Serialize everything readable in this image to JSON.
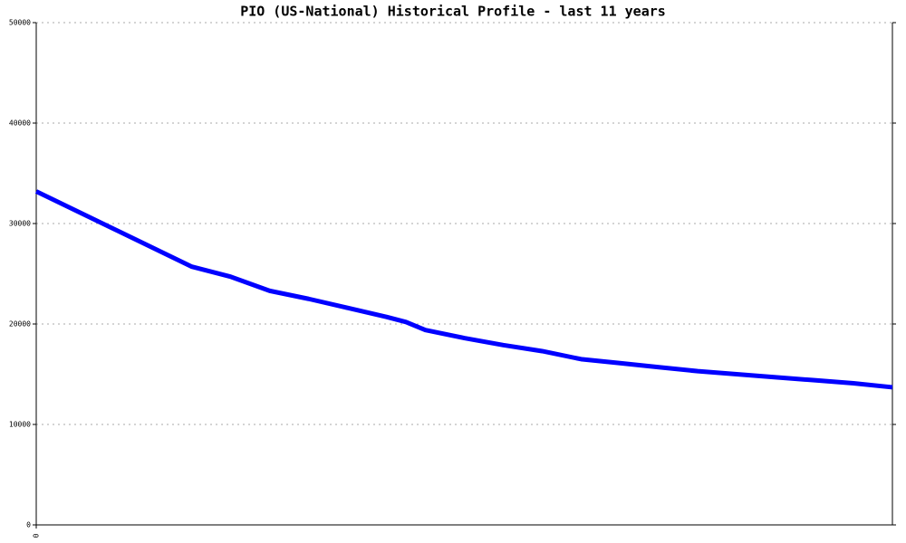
{
  "chart_data": {
    "type": "line",
    "title": "PIO (US-National) Historical Profile - last 11 years",
    "x": [
      0,
      4,
      5,
      6,
      7,
      8,
      9,
      9.5,
      10,
      11,
      12,
      13,
      14,
      15,
      16,
      17,
      18,
      19,
      20,
      21,
      22
    ],
    "series": [
      {
        "name": "PIO",
        "color": "#0000ff",
        "values": [
          33200,
          25700,
          24700,
          23300,
          22500,
          21600,
          20700,
          20200,
          19400,
          18600,
          17900,
          17300,
          16500,
          16100,
          15700,
          15300,
          15000,
          14700,
          14400,
          14100,
          13700
        ]
      }
    ],
    "xlim": [
      0,
      22
    ],
    "xticks": [
      0
    ],
    "ylim": [
      0,
      50000
    ],
    "yticks": [
      0,
      10000,
      20000,
      30000,
      40000,
      50000
    ],
    "grid": true
  }
}
